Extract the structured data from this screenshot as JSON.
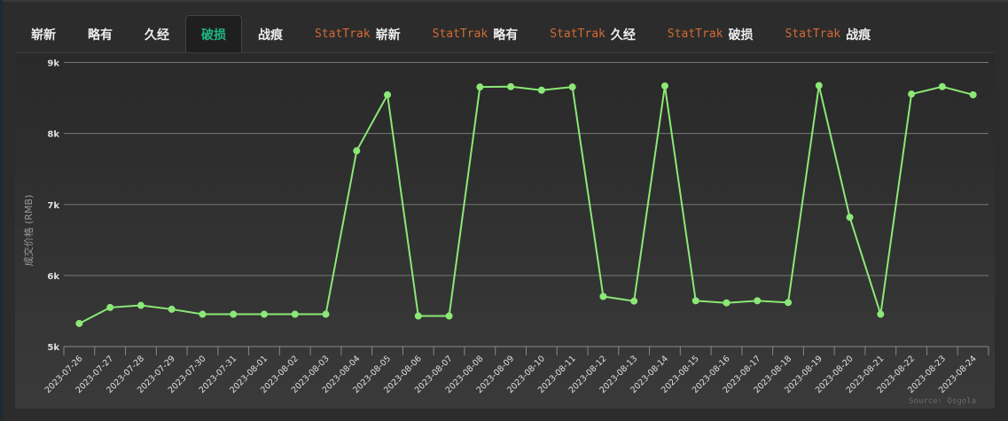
{
  "tabs": [
    {
      "prefix": "",
      "label": "崭新",
      "active": false
    },
    {
      "prefix": "",
      "label": "略有",
      "active": false
    },
    {
      "prefix": "",
      "label": "久经",
      "active": false
    },
    {
      "prefix": "",
      "label": "破损",
      "active": true
    },
    {
      "prefix": "",
      "label": "战痕",
      "active": false
    },
    {
      "prefix": "StatTrak",
      "label": "崭新",
      "active": false
    },
    {
      "prefix": "StatTrak",
      "label": "略有",
      "active": false
    },
    {
      "prefix": "StatTrak",
      "label": "久经",
      "active": false
    },
    {
      "prefix": "StatTrak",
      "label": "破损",
      "active": false
    },
    {
      "prefix": "StatTrak",
      "label": "战痕",
      "active": false
    }
  ],
  "colors": {
    "line": "#8be876",
    "grid": "#777777",
    "active_tab": "#1fb783",
    "stattrak": "#d36b32",
    "axis_text": "#e0e0e0"
  },
  "chart_data": {
    "type": "line",
    "title": "",
    "xlabel": "",
    "ylabel": "成交价格 (RMB)",
    "ylim": [
      5000,
      9000
    ],
    "yticks": [
      5000,
      6000,
      7000,
      8000,
      9000
    ],
    "ytick_labels": [
      "5k",
      "6k",
      "7k",
      "8k",
      "9k"
    ],
    "grid": true,
    "legend": null,
    "credit": "Source: Osgola",
    "x": [
      "2023-07-26",
      "2023-07-27",
      "2023-07-28",
      "2023-07-29",
      "2023-07-30",
      "2023-07-31",
      "2023-08-01",
      "2023-08-02",
      "2023-08-03",
      "2023-08-04",
      "2023-08-05",
      "2023-08-06",
      "2023-08-07",
      "2023-08-08",
      "2023-08-09",
      "2023-08-10",
      "2023-08-11",
      "2023-08-12",
      "2023-08-13",
      "2023-08-14",
      "2023-08-15",
      "2023-08-16",
      "2023-08-17",
      "2023-08-18",
      "2023-08-19",
      "2023-08-20",
      "2023-08-21",
      "2023-08-22",
      "2023-08-23",
      "2023-08-24"
    ],
    "series": [
      {
        "name": "成交价格",
        "values": [
          5325,
          5550,
          5580,
          5525,
          5455,
          5455,
          5455,
          5455,
          5455,
          7756,
          8545,
          5430,
          5430,
          8655,
          8660,
          8610,
          8655,
          5705,
          5640,
          8670,
          5645,
          5615,
          5645,
          5620,
          8675,
          6820,
          5455,
          8555,
          8660,
          8545
        ]
      }
    ]
  }
}
